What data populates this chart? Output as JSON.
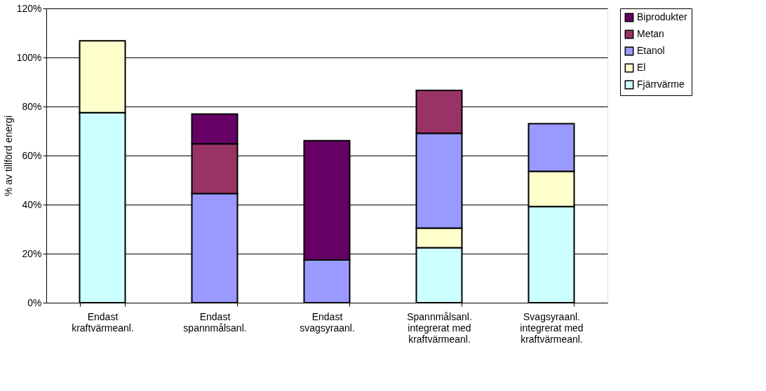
{
  "chart_data": {
    "type": "bar",
    "stacked": true,
    "ylabel": "% av tillförd energi",
    "categories": [
      "Endast\nkraftvärmeanl.",
      "Endast\nspannmålsanl.",
      "Endast\nsvagsyraanl.",
      "Spannmålsanl.\nintegrerat med\nkraftvärmeanl.",
      "Svagsyraanl.\nintegrerat med\nkraftvärmeanl."
    ],
    "series": [
      {
        "name": "Fjärrvärme",
        "color": "#ccffff",
        "values": [
          77.5,
          null,
          null,
          22.4,
          39.2
        ]
      },
      {
        "name": "El",
        "color": "#ffffcc",
        "values": [
          29.3,
          null,
          null,
          8.0,
          14.4
        ]
      },
      {
        "name": "Etanol",
        "color": "#9999ff",
        "values": [
          null,
          44.5,
          17.4,
          38.7,
          19.4
        ]
      },
      {
        "name": "Metan",
        "color": "#993366",
        "values": [
          null,
          20.3,
          null,
          17.5,
          null
        ]
      },
      {
        "name": "Biprodukter",
        "color": "#660066",
        "values": [
          null,
          12.1,
          48.7,
          null,
          null
        ]
      }
    ],
    "ylim": [
      0,
      120
    ],
    "yticks": [
      {
        "value": 0,
        "label": "0%"
      },
      {
        "value": 20,
        "label": "20%"
      },
      {
        "value": 40,
        "label": "40%"
      },
      {
        "value": 60,
        "label": "60%"
      },
      {
        "value": 80,
        "label": "80%"
      },
      {
        "value": 100,
        "label": "100%"
      },
      {
        "value": 120,
        "label": "120%"
      }
    ],
    "grid": "y",
    "legend": "right"
  }
}
